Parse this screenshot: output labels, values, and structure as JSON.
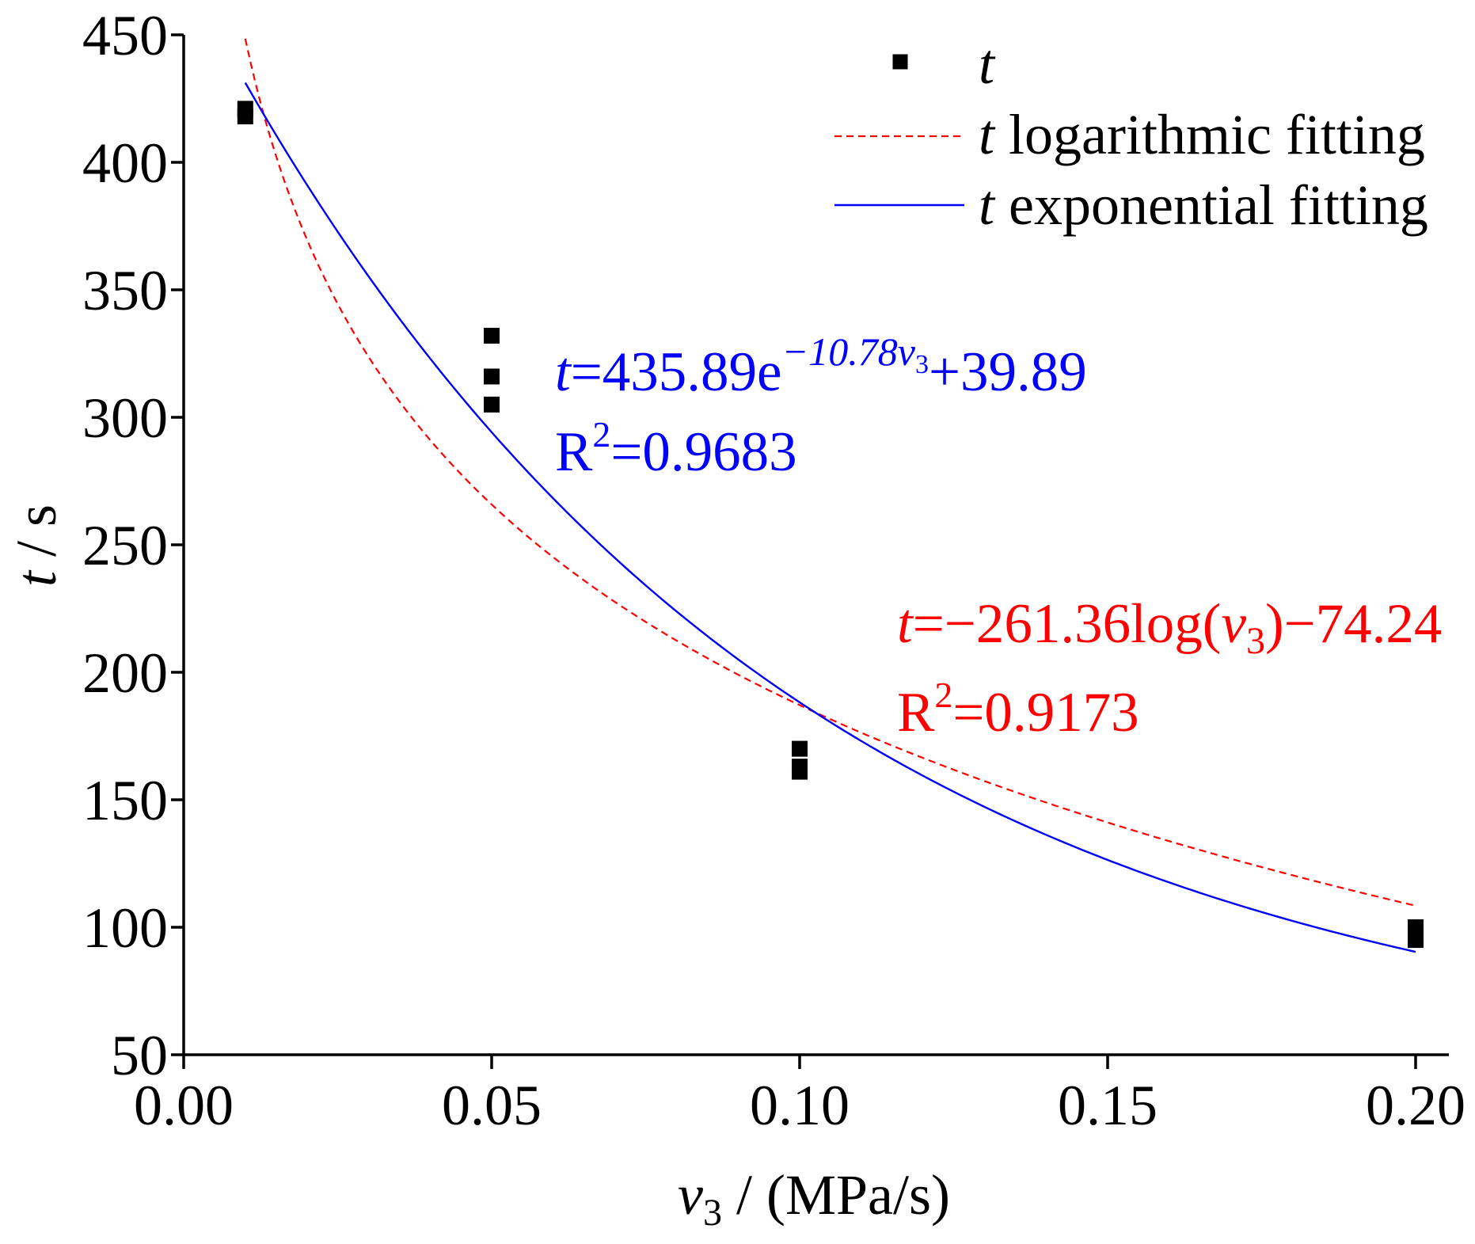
{
  "chart_data": {
    "type": "scatter",
    "title": "",
    "x_axis": {
      "label": {
        "var": "v",
        "sub": "3",
        "unit": " / (MPa/s)"
      },
      "range": [
        0,
        0.2054
      ],
      "ticks": [
        0,
        0.05,
        0.1,
        0.15,
        0.2
      ],
      "tick_labels": [
        "0.00",
        "0.05",
        "0.10",
        "0.15",
        "0.20"
      ]
    },
    "y_axis": {
      "label": {
        "var": "t",
        "unit": " / s"
      },
      "range": [
        50,
        450
      ],
      "ticks": [
        50,
        100,
        150,
        200,
        250,
        300,
        350,
        400,
        450
      ],
      "tick_labels": [
        "50",
        "100",
        "150",
        "200",
        "250",
        "300",
        "350",
        "400",
        "450"
      ]
    },
    "grid": false,
    "legend": {
      "position": "top-right"
    },
    "series": [
      {
        "name": "t",
        "x": [
          0.01,
          0.01,
          0.05,
          0.05,
          0.05,
          0.1,
          0.1,
          0.1,
          0.2,
          0.2
        ],
        "y": [
          418,
          421,
          332,
          316,
          305,
          170,
          163,
          161,
          100,
          95
        ]
      }
    ],
    "fits": {
      "logarithmic": {
        "legend": {
          "var": "t",
          "label": " logarithmic fitting"
        },
        "model": {
          "a": -261.36,
          "b": -74.24,
          "log_base": 10
        },
        "x_range": [
          0.01,
          0.2
        ],
        "equation": {
          "var": "t",
          "lhs": "=−261.36log(",
          "arg_var": "v",
          "arg_sub": "3",
          "rhs": ")−74.24"
        },
        "r2": {
          "symbol": "R",
          "sup": "2",
          "value": "=0.9173"
        }
      },
      "exponential": {
        "legend": {
          "var": "t",
          "label": " exponential fitting"
        },
        "model": {
          "a": 435.89,
          "b": -10.78,
          "c": 39.89
        },
        "x_range": [
          0.01,
          0.2
        ],
        "equation": {
          "var": "t",
          "lhs": "=435.89e",
          "exp": "−10.78",
          "exp_var": "v",
          "exp_sub": "3",
          "rhs": "+39.89"
        },
        "r2": {
          "symbol": "R",
          "sup": "2",
          "value": "=0.9683"
        }
      }
    },
    "colors": {
      "points": "#000000",
      "logarithmic": "#FF0000",
      "exponential": "#0000FF",
      "axes": "#000000",
      "text": "#000000",
      "background": "#FFFFFF"
    }
  }
}
